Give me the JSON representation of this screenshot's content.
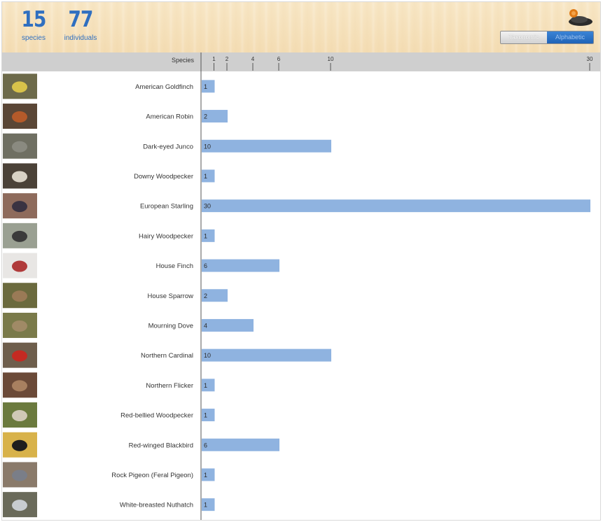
{
  "summary": {
    "species_count": "15",
    "species_label": "species",
    "individuals_count": "77",
    "individuals_label": "individuals"
  },
  "toggle": {
    "options": [
      "Taxonomic",
      "Alphabetic"
    ],
    "selected": "Alphabetic"
  },
  "colors": {
    "bar": "#8fb3e0",
    "accent": "#2f6fc0"
  },
  "chart_data": {
    "type": "bar",
    "orientation": "horizontal",
    "ylabel": "Species",
    "x_ticks": [
      1,
      2,
      4,
      6,
      10,
      30
    ],
    "xlim": [
      0,
      30
    ],
    "categories": [
      "American Goldfinch",
      "American Robin",
      "Dark-eyed Junco",
      "Downy Woodpecker",
      "European Starling",
      "Hairy Woodpecker",
      "House Finch",
      "House Sparrow",
      "Mourning Dove",
      "Northern Cardinal",
      "Northern Flicker",
      "Red-bellied Woodpecker",
      "Red-winged Blackbird",
      "Rock Pigeon (Feral Pigeon)",
      "White-breasted Nuthatch"
    ],
    "values": [
      1,
      2,
      10,
      1,
      30,
      1,
      6,
      2,
      4,
      10,
      1,
      1,
      6,
      1,
      1
    ],
    "thumbnails": [
      "goldfinch-photo",
      "robin-photo",
      "junco-photo",
      "downy-woodpecker-photo",
      "starling-photo",
      "hairy-woodpecker-photo",
      "house-finch-photo",
      "house-sparrow-photo",
      "mourning-dove-photo",
      "cardinal-photo",
      "flicker-photo",
      "red-bellied-woodpecker-photo",
      "blackbird-photo",
      "pigeon-photo",
      "nuthatch-photo"
    ]
  }
}
